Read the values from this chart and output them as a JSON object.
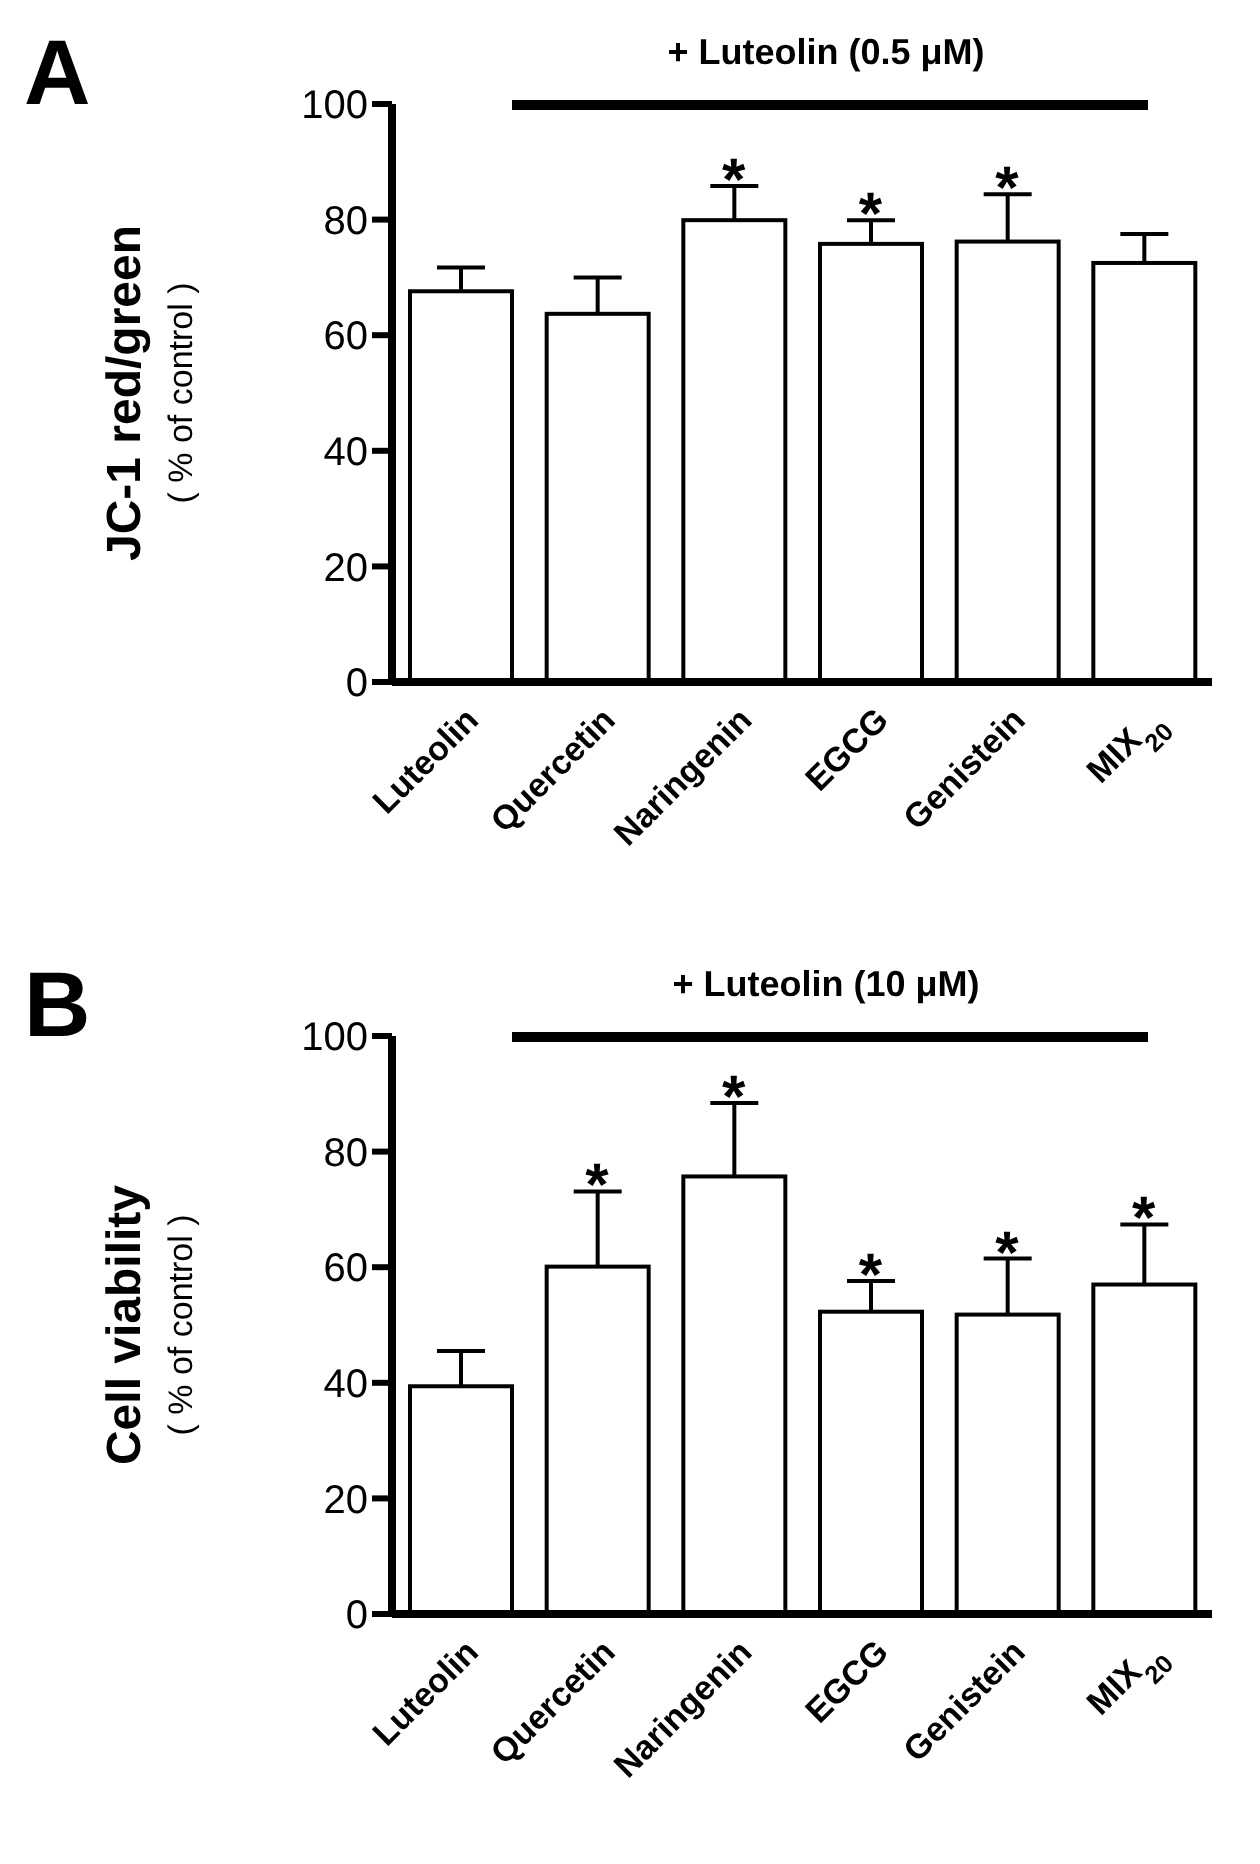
{
  "chart_data": [
    {
      "type": "bar",
      "ylabel": "JC-1 red/green\n( % of control )",
      "categories": [
        "Luteolin",
        "Quercetin",
        "Naringenin",
        "EGCG",
        "Genistein",
        "MIX$_{20}$"
      ],
      "values": [
        67.6,
        63.7,
        79.9,
        75.8,
        76.2,
        72.5
      ],
      "errors": [
        4.1,
        6.3,
        5.9,
        4.1,
        8.2,
        5.0
      ],
      "color": "#ffffff",
      "ylim": [
        0,
        100
      ],
      "yticks": [
        0,
        20,
        40,
        60,
        80,
        100
      ],
      "grid": false,
      "legend": false,
      "annotations": [
        "A",
        "+ Luteolin (0.5 μM)",
        {
          "text": "*",
          "x": "Naringenin",
          "y": 79.9
        },
        {
          "text": "*",
          "x": "EGCG",
          "y": 75.8
        },
        {
          "text": "*",
          "x": "Genistein",
          "y": 76.2
        }
      ]
    },
    {
      "type": "bar",
      "ylabel": "Cell viability\n( % of control )",
      "categories": [
        "Luteolin",
        "Quercetin",
        "Naringenin",
        "EGCG",
        "Genistein",
        "MIX$_{20}$"
      ],
      "values": [
        39.4,
        60.1,
        75.7,
        52.3,
        51.8,
        57.0
      ],
      "errors": [
        6.1,
        13.0,
        12.7,
        5.3,
        9.7,
        10.4
      ],
      "color": "#ffffff",
      "ylim": [
        0,
        100
      ],
      "yticks": [
        0,
        20,
        40,
        60,
        80,
        100
      ],
      "grid": false,
      "legend": false,
      "annotations": [
        "B",
        "+ Luteolin (10 μM)",
        {
          "text": "*",
          "x": "Quercetin",
          "y": 60.1
        },
        {
          "text": "*",
          "x": "Naringenin",
          "y": 75.7
        },
        {
          "text": "*",
          "x": "EGCG",
          "y": 52.3
        },
        {
          "text": "*",
          "x": "Genistein",
          "y": 51.8
        },
        {
          "text": "*",
          "x": "MIX$_{20}$",
          "y": 57.0
        }
      ]
    }
  ]
}
